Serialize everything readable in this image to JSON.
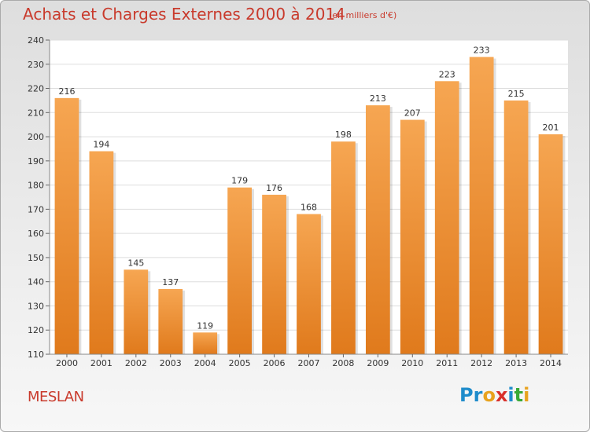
{
  "header": {
    "title": "Achats et Charges Externes 2000 à 2014",
    "unit": "(en milliers d'€)"
  },
  "footer": {
    "commune": "MESLAN",
    "logo_letters": [
      "P",
      "r",
      "o",
      "x",
      "i",
      "t",
      "i"
    ]
  },
  "colors": {
    "title": "#c93a2c",
    "bar_top": "#f6a652",
    "bar_bottom": "#e07a1c",
    "logo": [
      "#1f8ccb",
      "#1f8ccb",
      "#e8a21d",
      "#d9302a",
      "#1f8ccb",
      "#3aa935",
      "#e8a21d"
    ]
  },
  "chart_data": {
    "type": "bar",
    "categories": [
      "2000",
      "2001",
      "2002",
      "2003",
      "2004",
      "2005",
      "2006",
      "2007",
      "2008",
      "2009",
      "2010",
      "2011",
      "2012",
      "2013",
      "2014"
    ],
    "values": [
      216,
      194,
      145,
      137,
      119,
      179,
      176,
      168,
      198,
      213,
      207,
      223,
      233,
      215,
      201
    ],
    "ylim": [
      110,
      240
    ],
    "yticks": [
      110,
      120,
      130,
      140,
      150,
      160,
      170,
      180,
      190,
      200,
      210,
      220,
      230,
      240
    ],
    "grid": true
  }
}
